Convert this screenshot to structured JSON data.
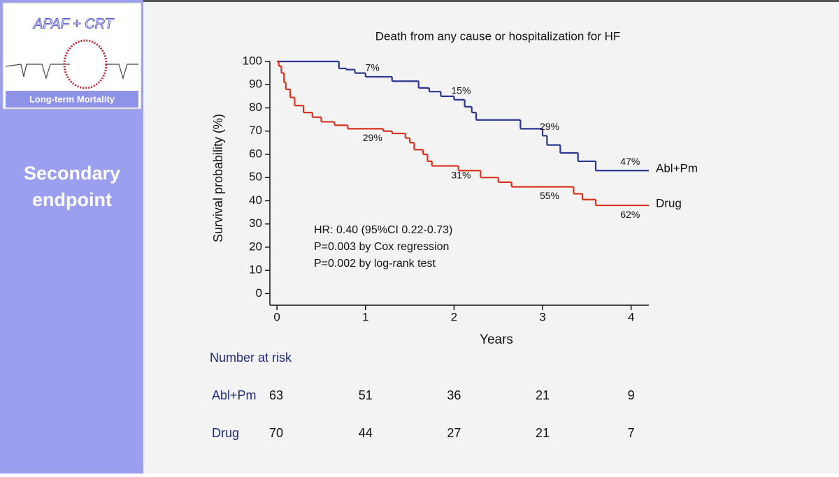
{
  "slide": {
    "logo_title": "APAF + CRT",
    "logo_subtitle": "Long-term Mortality",
    "section": [
      "Secondary",
      "endpoint"
    ]
  },
  "chart_data": {
    "type": "step",
    "title": "Death from any cause or hospitalization for HF",
    "x_label": "Years",
    "y_label": "Survival probability (%)",
    "xlim": [
      -0.08,
      4.2
    ],
    "xticks": [
      0,
      1,
      2,
      3,
      4
    ],
    "ylim": [
      -5,
      100
    ],
    "yticks": [
      0,
      10,
      20,
      30,
      40,
      50,
      60,
      70,
      80,
      90,
      100
    ],
    "series": [
      {
        "name": "Abl+Pm",
        "color": "#2a3590",
        "x": [
          0,
          0.7,
          0.78,
          0.88,
          1.0,
          1.3,
          1.6,
          1.72,
          1.85,
          2.0,
          2.12,
          2.2,
          2.25,
          2.75,
          3.0,
          3.05,
          3.2,
          3.4,
          3.6
        ],
        "values": [
          100,
          97,
          96.5,
          95,
          93.4,
          91.5,
          88.6,
          87,
          85,
          83.5,
          80.5,
          78,
          74.8,
          71,
          68,
          64,
          60.6,
          57,
          53
        ],
        "event_labels": [
          "7%",
          "15%",
          "29%",
          "47%"
        ]
      },
      {
        "name": "Drug",
        "color": "#d8321e",
        "x": [
          0,
          0.02,
          0.05,
          0.08,
          0.1,
          0.15,
          0.2,
          0.3,
          0.4,
          0.5,
          0.65,
          0.8,
          1.2,
          1.3,
          1.45,
          1.5,
          1.55,
          1.65,
          1.7,
          1.75,
          2.05,
          2.3,
          2.5,
          2.65,
          3.35,
          3.45,
          3.6
        ],
        "values": [
          100,
          98,
          95,
          91,
          88,
          84.5,
          81,
          78,
          76,
          74,
          72.5,
          71,
          70,
          69,
          67,
          65,
          62,
          60,
          57,
          55,
          53,
          50,
          48,
          46,
          43,
          40.5,
          38
        ],
        "event_labels": [
          "29%",
          "31%",
          "55%",
          "62%"
        ]
      }
    ],
    "annotations": [
      "HR: 0.40 (95%CI 0.22-0.73)",
      "P=0.003 by Cox regression",
      "P=0.002 by log-rank test"
    ]
  },
  "risk_table": {
    "title": "Number at risk",
    "rows": [
      {
        "label": "Abl+Pm",
        "values": [
          63,
          51,
          36,
          21,
          9
        ]
      },
      {
        "label": "Drug",
        "values": [
          70,
          44,
          27,
          21,
          7
        ]
      }
    ]
  }
}
